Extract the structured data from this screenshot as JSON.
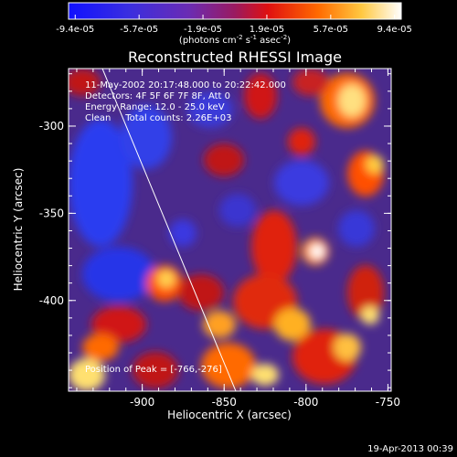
{
  "colorbar": {
    "tick_labels": [
      "-9.4e-05",
      "-5.7e-05",
      "-1.9e-05",
      "1.9e-05",
      "5.7e-05",
      "9.4e-05"
    ],
    "unit_label": "(photons cm",
    "unit_exp1": "-2",
    "unit_mid": " s",
    "unit_exp2": "-1",
    "unit_mid2": " asec",
    "unit_exp3": "-2",
    "unit_end": ")",
    "colors": [
      "#1414ff",
      "#4a2cd0",
      "#6a2cb0",
      "#b01840",
      "#ff2000",
      "#ff8800",
      "#ffe060",
      "#ffffff"
    ]
  },
  "plot": {
    "title": "Reconstructed RHESSI Image",
    "x_axis_title": "Heliocentric X (arcsec)",
    "y_axis_title": "Heliocentric Y (arcsec)",
    "x_ticks": [
      "-900",
      "-850",
      "-800",
      "-750"
    ],
    "y_ticks": [
      "-300",
      "-350",
      "-400"
    ],
    "x_range": [
      -945,
      -748
    ],
    "y_range": [
      -267,
      -452
    ]
  },
  "annotations": {
    "line1": "11-May-2002 20:17:48.000 to 20:22:42.000",
    "line2": "Detectors: 4F 5F 6F 7F 8F, Att 0",
    "line3": "Energy Range: 12.0 - 25.0 keV",
    "line4": "Clean     Total counts: 2.26E+03",
    "peak": "Position of Peak = [-766,-276]"
  },
  "footer": {
    "timestamp": "19-Apr-2013 00:39"
  }
}
